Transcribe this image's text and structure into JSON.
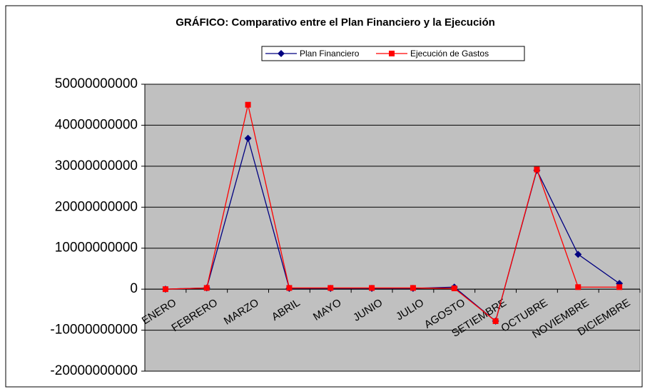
{
  "chart_data": {
    "type": "line",
    "title": "GRÁFICO: Comparativo entre el Plan Financiero y la Ejecución",
    "categories": [
      "ENERO",
      "FEBRERO",
      "MARZO",
      "ABRIL",
      "MAYO",
      "JUNIO",
      "JULIO",
      "AGOSTO",
      "SETIEMBRE",
      "OCTUBRE",
      "NOVIEMBRE",
      "DICIEMBRE"
    ],
    "series": [
      {
        "name": "Plan Financiero",
        "color": "#000080",
        "marker": "diamond",
        "values": [
          0,
          300000000,
          36800000000,
          200000000,
          200000000,
          200000000,
          200000000,
          500000000,
          -7800000000,
          29000000000,
          8500000000,
          1400000000
        ]
      },
      {
        "name": "Ejecución de Gastos",
        "color": "#ff0000",
        "marker": "square",
        "values": [
          0,
          300000000,
          45000000000,
          300000000,
          300000000,
          300000000,
          300000000,
          200000000,
          -7800000000,
          29200000000,
          500000000,
          500000000
        ]
      }
    ],
    "ylim": [
      -20000000000,
      50000000000
    ],
    "yticks": [
      -20000000000,
      -10000000000,
      0,
      10000000000,
      20000000000,
      30000000000,
      40000000000,
      50000000000
    ],
    "grid": true,
    "legend": "top"
  }
}
